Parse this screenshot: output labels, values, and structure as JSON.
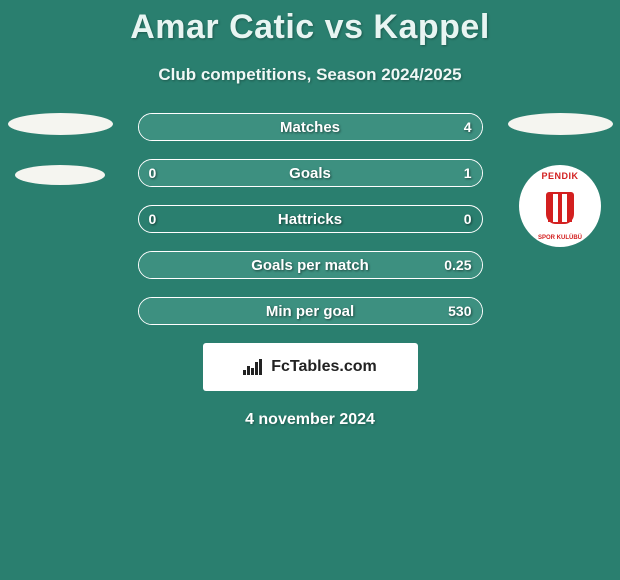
{
  "background_color": "#2a7f6f",
  "title": "Amar Catic vs Kappel",
  "subtitle": "Club competitions, Season 2024/2025",
  "footer_date": "4 november 2024",
  "logo_text": "FcTables.com",
  "right_badge": {
    "top_text": "PENDIK",
    "bottom_text": "SPOR KULÜBÜ",
    "primary_color": "#d32020"
  },
  "bars": {
    "bar_border_color": "#ffffff",
    "bar_fill_color": "#3d9080",
    "text_color": "#ffffff",
    "label_fontsize": 15,
    "value_fontsize": 14,
    "rows": [
      {
        "label": "Matches",
        "left": "",
        "right": "4",
        "left_pct": 0,
        "right_pct": 100
      },
      {
        "label": "Goals",
        "left": "0",
        "right": "1",
        "left_pct": 0,
        "right_pct": 100
      },
      {
        "label": "Hattricks",
        "left": "0",
        "right": "0",
        "left_pct": 0,
        "right_pct": 0
      },
      {
        "label": "Goals per match",
        "left": "",
        "right": "0.25",
        "left_pct": 0,
        "right_pct": 100
      },
      {
        "label": "Min per goal",
        "left": "",
        "right": "530",
        "left_pct": 0,
        "right_pct": 100
      }
    ]
  }
}
